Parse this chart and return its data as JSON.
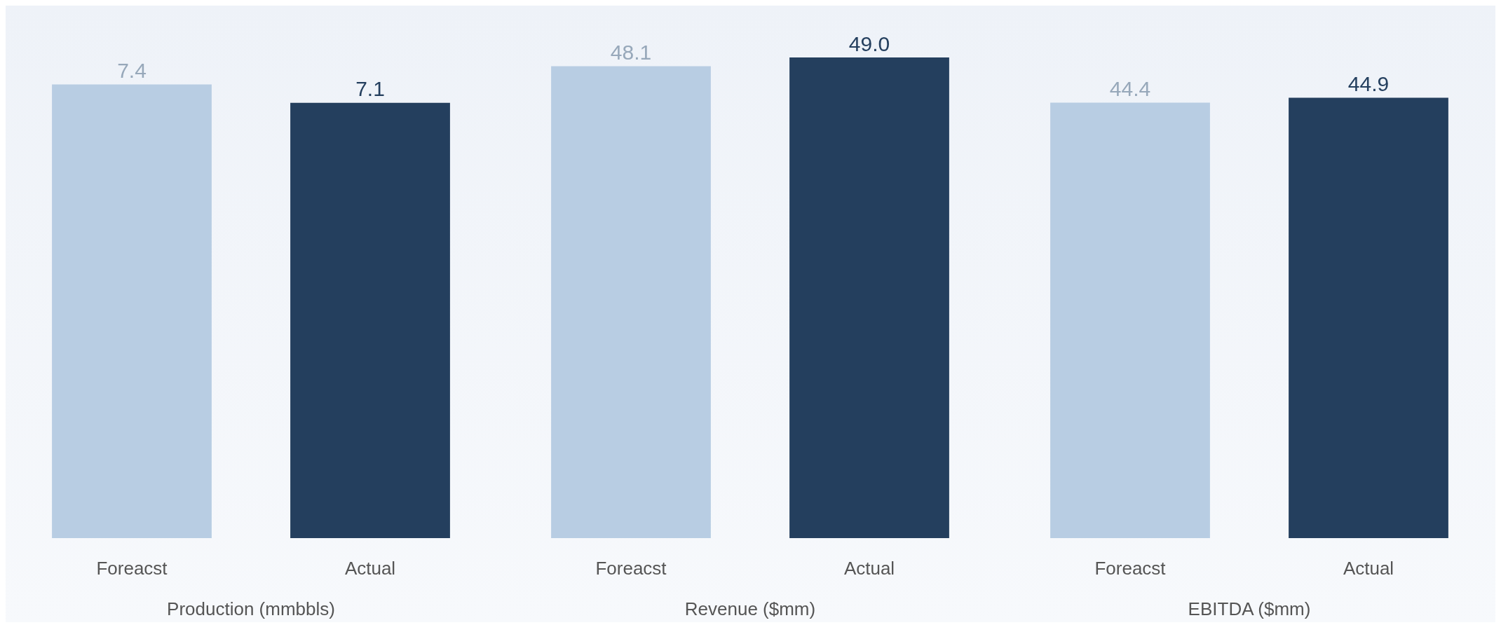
{
  "chart_data": [
    {
      "type": "bar",
      "categories": [
        "Foreacst",
        "Actual"
      ],
      "values": [
        7.4,
        7.1
      ],
      "colors": [
        "#b8cde3",
        "#243f5e"
      ],
      "value_labels": [
        "7.4",
        "7.1"
      ],
      "xlabel": "Production (mmbbls)"
    },
    {
      "type": "bar",
      "categories": [
        "Foreacst",
        "Actual"
      ],
      "values": [
        48.1,
        49.0
      ],
      "colors": [
        "#b8cde3",
        "#243f5e"
      ],
      "value_labels": [
        "48.1",
        "49.0"
      ],
      "xlabel": "Revenue ($mm)"
    },
    {
      "type": "bar",
      "categories": [
        "Foreacst",
        "Actual"
      ],
      "values": [
        44.4,
        44.9
      ],
      "colors": [
        "#b8cde3",
        "#243f5e"
      ],
      "value_labels": [
        "44.4",
        "44.9"
      ],
      "xlabel": "EBITDA ($mm)"
    }
  ]
}
